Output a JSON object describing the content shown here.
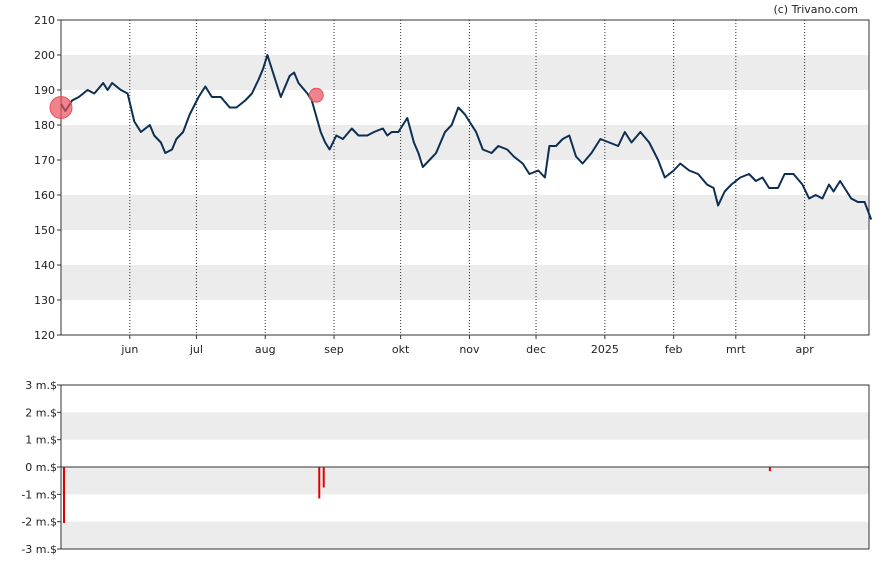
{
  "credit": "(c) Trivano.com",
  "chart_data": [
    {
      "type": "line",
      "title": "",
      "xlabel": "",
      "ylabel": "",
      "ylim": [
        120,
        210
      ],
      "yticks": [
        "120",
        "130",
        "140",
        "150",
        "160",
        "170",
        "180",
        "190",
        "200",
        "210"
      ],
      "x_start": "2024-05-01",
      "x_end": "2025-04-30",
      "xtick_labels": [
        {
          "label": "jun",
          "date": "2024-06-01"
        },
        {
          "label": "jul",
          "date": "2024-07-01"
        },
        {
          "label": "aug",
          "date": "2024-08-01"
        },
        {
          "label": "sep",
          "date": "2024-09-01"
        },
        {
          "label": "okt",
          "date": "2024-10-01"
        },
        {
          "label": "nov",
          "date": "2024-11-01"
        },
        {
          "label": "dec",
          "date": "2024-12-01"
        },
        {
          "label": "2025",
          "date": "2025-01-01"
        },
        {
          "label": "feb",
          "date": "2025-02-01"
        },
        {
          "label": "mrt",
          "date": "2025-03-01"
        },
        {
          "label": "apr",
          "date": "2025-04-01"
        }
      ],
      "grid": "alternating horizontal bands, dotted vertical lines at month starts",
      "series": [
        {
          "color": "#0d2f52",
          "points": [
            [
              "2024-05-01",
              186
            ],
            [
              "2024-05-03",
              184
            ],
            [
              "2024-05-06",
              187
            ],
            [
              "2024-05-09",
              188
            ],
            [
              "2024-05-13",
              190
            ],
            [
              "2024-05-16",
              189
            ],
            [
              "2024-05-20",
              192
            ],
            [
              "2024-05-22",
              190
            ],
            [
              "2024-05-24",
              192
            ],
            [
              "2024-05-28",
              190
            ],
            [
              "2024-05-31",
              189
            ],
            [
              "2024-06-03",
              181
            ],
            [
              "2024-06-06",
              178
            ],
            [
              "2024-06-10",
              180
            ],
            [
              "2024-06-12",
              177
            ],
            [
              "2024-06-15",
              175
            ],
            [
              "2024-06-17",
              172
            ],
            [
              "2024-06-20",
              173
            ],
            [
              "2024-06-22",
              176
            ],
            [
              "2024-06-25",
              178
            ],
            [
              "2024-06-28",
              183
            ],
            [
              "2024-07-02",
              188
            ],
            [
              "2024-07-05",
              191
            ],
            [
              "2024-07-08",
              188
            ],
            [
              "2024-07-12",
              188
            ],
            [
              "2024-07-16",
              185
            ],
            [
              "2024-07-19",
              185
            ],
            [
              "2024-07-23",
              187
            ],
            [
              "2024-07-26",
              189
            ],
            [
              "2024-07-29",
              193
            ],
            [
              "2024-07-31",
              196
            ],
            [
              "2024-08-02",
              200
            ],
            [
              "2024-08-06",
              192
            ],
            [
              "2024-08-08",
              188
            ],
            [
              "2024-08-12",
              194
            ],
            [
              "2024-08-14",
              195
            ],
            [
              "2024-08-16",
              192
            ],
            [
              "2024-08-20",
              189
            ],
            [
              "2024-08-22",
              187
            ],
            [
              "2024-08-26",
              178
            ],
            [
              "2024-08-28",
              175
            ],
            [
              "2024-08-30",
              173
            ],
            [
              "2024-09-02",
              177
            ],
            [
              "2024-09-05",
              176
            ],
            [
              "2024-09-09",
              179
            ],
            [
              "2024-09-12",
              177
            ],
            [
              "2024-09-16",
              177
            ],
            [
              "2024-09-19",
              178
            ],
            [
              "2024-09-23",
              179
            ],
            [
              "2024-09-25",
              177
            ],
            [
              "2024-09-27",
              178
            ],
            [
              "2024-09-30",
              178
            ],
            [
              "2024-10-02",
              180
            ],
            [
              "2024-10-04",
              182
            ],
            [
              "2024-10-07",
              175
            ],
            [
              "2024-10-09",
              172
            ],
            [
              "2024-10-11",
              168
            ],
            [
              "2024-10-14",
              170
            ],
            [
              "2024-10-17",
              172
            ],
            [
              "2024-10-21",
              178
            ],
            [
              "2024-10-24",
              180
            ],
            [
              "2024-10-27",
              185
            ],
            [
              "2024-10-30",
              183
            ],
            [
              "2024-11-01",
              181
            ],
            [
              "2024-11-04",
              178
            ],
            [
              "2024-11-07",
              173
            ],
            [
              "2024-11-11",
              172
            ],
            [
              "2024-11-14",
              174
            ],
            [
              "2024-11-18",
              173
            ],
            [
              "2024-11-21",
              171
            ],
            [
              "2024-11-25",
              169
            ],
            [
              "2024-11-28",
              166
            ],
            [
              "2024-12-02",
              167
            ],
            [
              "2024-12-05",
              165
            ],
            [
              "2024-12-07",
              174
            ],
            [
              "2024-12-10",
              174
            ],
            [
              "2024-12-13",
              176
            ],
            [
              "2024-12-16",
              177
            ],
            [
              "2024-12-19",
              171
            ],
            [
              "2024-12-22",
              169
            ],
            [
              "2024-12-26",
              172
            ],
            [
              "2024-12-30",
              176
            ],
            [
              "2025-01-03",
              175
            ],
            [
              "2025-01-07",
              174
            ],
            [
              "2025-01-10",
              178
            ],
            [
              "2025-01-13",
              175
            ],
            [
              "2025-01-17",
              178
            ],
            [
              "2025-01-21",
              175
            ],
            [
              "2025-01-25",
              170
            ],
            [
              "2025-01-28",
              165
            ],
            [
              "2025-02-01",
              167
            ],
            [
              "2025-02-04",
              169
            ],
            [
              "2025-02-08",
              167
            ],
            [
              "2025-02-12",
              166
            ],
            [
              "2025-02-16",
              163
            ],
            [
              "2025-02-19",
              162
            ],
            [
              "2025-02-21",
              157
            ],
            [
              "2025-02-24",
              161
            ],
            [
              "2025-02-27",
              163
            ],
            [
              "2025-03-03",
              165
            ],
            [
              "2025-03-07",
              166
            ],
            [
              "2025-03-10",
              164
            ],
            [
              "2025-03-13",
              165
            ],
            [
              "2025-03-16",
              162
            ],
            [
              "2025-03-20",
              162
            ],
            [
              "2025-03-23",
              166
            ],
            [
              "2025-03-27",
              166
            ],
            [
              "2025-03-31",
              163
            ],
            [
              "2025-04-03",
              159
            ],
            [
              "2025-04-06",
              160
            ],
            [
              "2025-04-09",
              159
            ],
            [
              "2025-04-12",
              163
            ],
            [
              "2025-04-14",
              161
            ],
            [
              "2025-04-17",
              164
            ],
            [
              "2025-04-19",
              162
            ],
            [
              "2025-04-22",
              159
            ],
            [
              "2025-04-25",
              158
            ],
            [
              "2025-04-28",
              158
            ],
            [
              "2025-05-01",
              153
            ]
          ]
        }
      ],
      "event_markers": [
        {
          "date": "2024-05-01",
          "value": 185,
          "color": "#e8505b"
        },
        {
          "date": "2024-08-24",
          "value": 188.5,
          "color": "#e8505b"
        }
      ]
    },
    {
      "type": "bar",
      "title": "",
      "ylim": [
        -3,
        3
      ],
      "yticks": [
        "-3 m.$",
        "-2 m.$",
        "-1 m.$",
        "0 m.$",
        "1 m.$",
        "2 m.$",
        "3 m.$"
      ],
      "series": [
        {
          "color": "#e00000",
          "points": [
            [
              "2024-05-01",
              -2.05
            ],
            [
              "2024-08-24",
              -1.15
            ],
            [
              "2024-08-26",
              -0.75
            ],
            [
              "2025-03-15",
              -0.15
            ]
          ]
        }
      ]
    }
  ]
}
